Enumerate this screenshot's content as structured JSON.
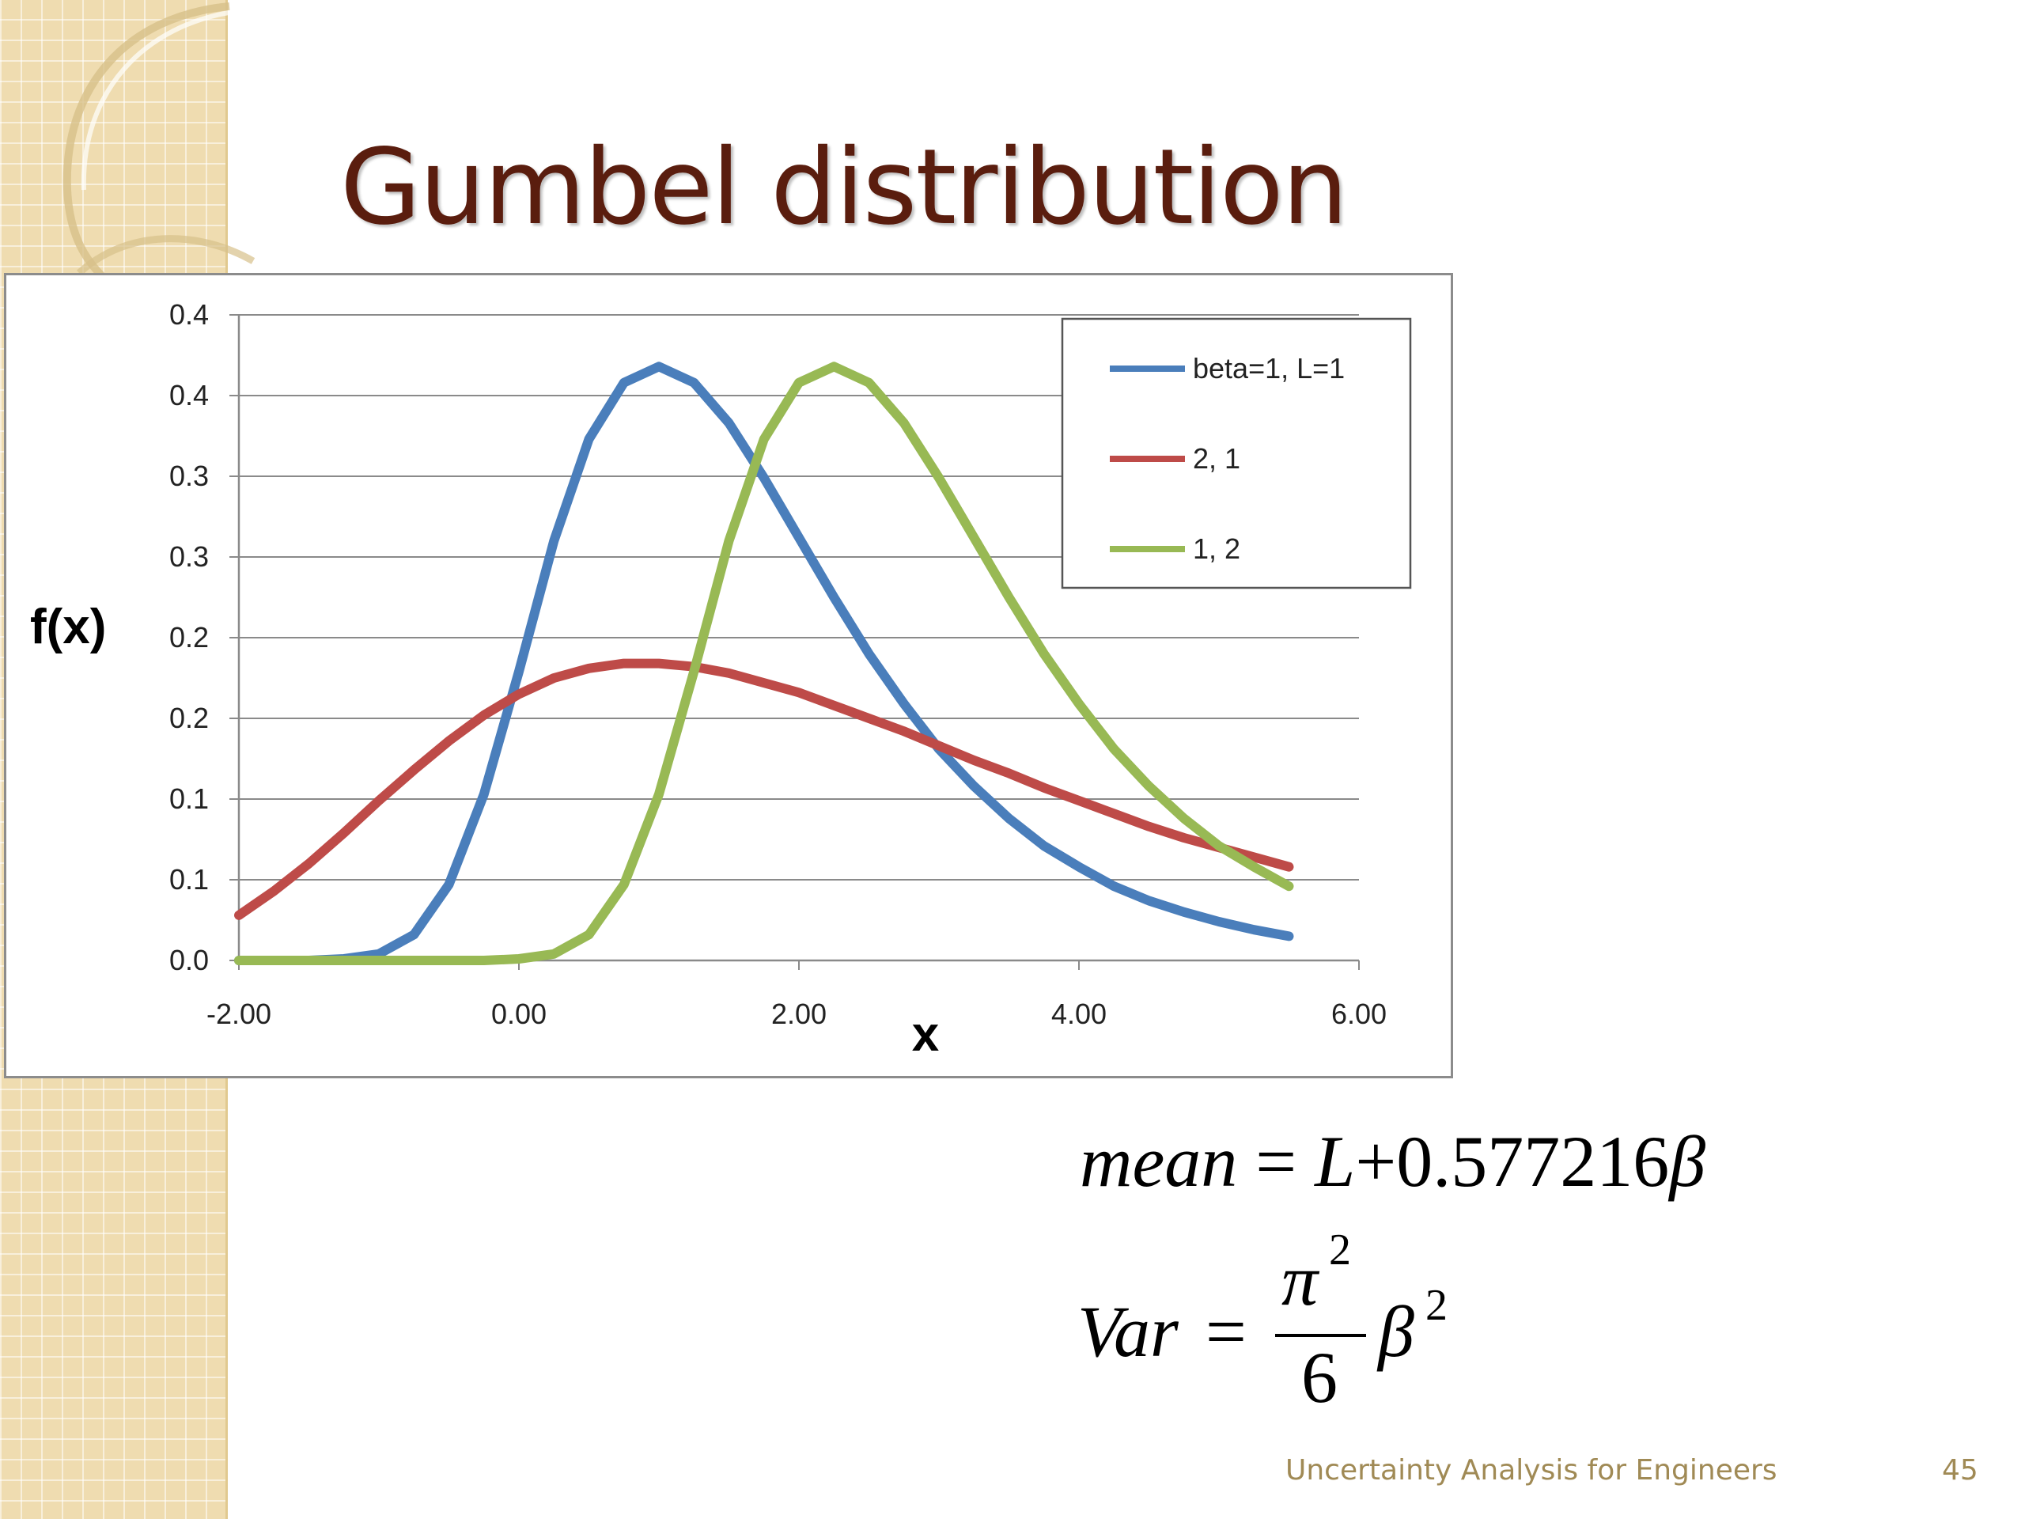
{
  "slide": {
    "title": "Gumbel distribution",
    "footer": "Uncertainty Analysis for Engineers",
    "page_number": "45"
  },
  "formulas": {
    "mean": {
      "lhs": "mean",
      "equals": "=",
      "L": "L",
      "plus": "+",
      "constant": "0.577216",
      "beta": "β"
    },
    "var": {
      "lhs": "Var",
      "equals": "=",
      "numerator": "π",
      "num_exp": "2",
      "denominator": "6",
      "beta": "β",
      "beta_exp": "2"
    }
  },
  "chart_data": {
    "type": "line",
    "xlabel": "x",
    "ylabel": "f(x)",
    "xlim": [
      -2,
      6
    ],
    "ylim": [
      0,
      0.4
    ],
    "x_ticks": [
      "-2.00",
      "0.00",
      "2.00",
      "4.00",
      "6.00"
    ],
    "y_ticks": [
      "0.0",
      "0.1",
      "0.1",
      "0.2",
      "0.2",
      "0.3",
      "0.3",
      "0.4",
      "0.4"
    ],
    "legend_position": "top-right",
    "grid": true,
    "x": [
      -2.0,
      -1.75,
      -1.5,
      -1.25,
      -1.0,
      -0.75,
      -0.5,
      -0.25,
      0.0,
      0.25,
      0.5,
      0.75,
      1.0,
      1.25,
      1.5,
      1.75,
      2.0,
      2.25,
      2.5,
      2.75,
      3.0,
      3.25,
      3.5,
      3.75,
      4.0,
      4.25,
      4.5,
      4.75,
      5.0,
      5.25,
      5.5
    ],
    "series": [
      {
        "name": "beta=1, L=1",
        "color": "#4a7ebb",
        "values": [
          0.0,
          0.0,
          0.0,
          0.001,
          0.004,
          0.016,
          0.047,
          0.103,
          0.179,
          0.26,
          0.323,
          0.358,
          0.368,
          0.358,
          0.333,
          0.299,
          0.262,
          0.225,
          0.19,
          0.159,
          0.131,
          0.108,
          0.088,
          0.071,
          0.058,
          0.046,
          0.037,
          0.03,
          0.024,
          0.019,
          0.015
        ]
      },
      {
        "name": "2, 1",
        "color": "#be4b48",
        "values": [
          0.028,
          0.043,
          0.06,
          0.079,
          0.099,
          0.118,
          0.136,
          0.152,
          0.165,
          0.175,
          0.181,
          0.184,
          0.184,
          0.182,
          0.178,
          0.172,
          0.166,
          0.158,
          0.15,
          0.142,
          0.133,
          0.124,
          0.116,
          0.107,
          0.099,
          0.091,
          0.083,
          0.076,
          0.07,
          0.064,
          0.058
        ]
      },
      {
        "name": "1, 2",
        "color": "#98b954",
        "values": [
          0.0,
          0.0,
          0.0,
          0.0,
          0.0,
          0.0,
          0.0,
          0.0,
          0.001,
          0.004,
          0.016,
          0.047,
          0.103,
          0.179,
          0.26,
          0.323,
          0.358,
          0.368,
          0.358,
          0.333,
          0.299,
          0.262,
          0.225,
          0.19,
          0.159,
          0.131,
          0.108,
          0.088,
          0.071,
          0.058,
          0.046
        ]
      }
    ]
  }
}
